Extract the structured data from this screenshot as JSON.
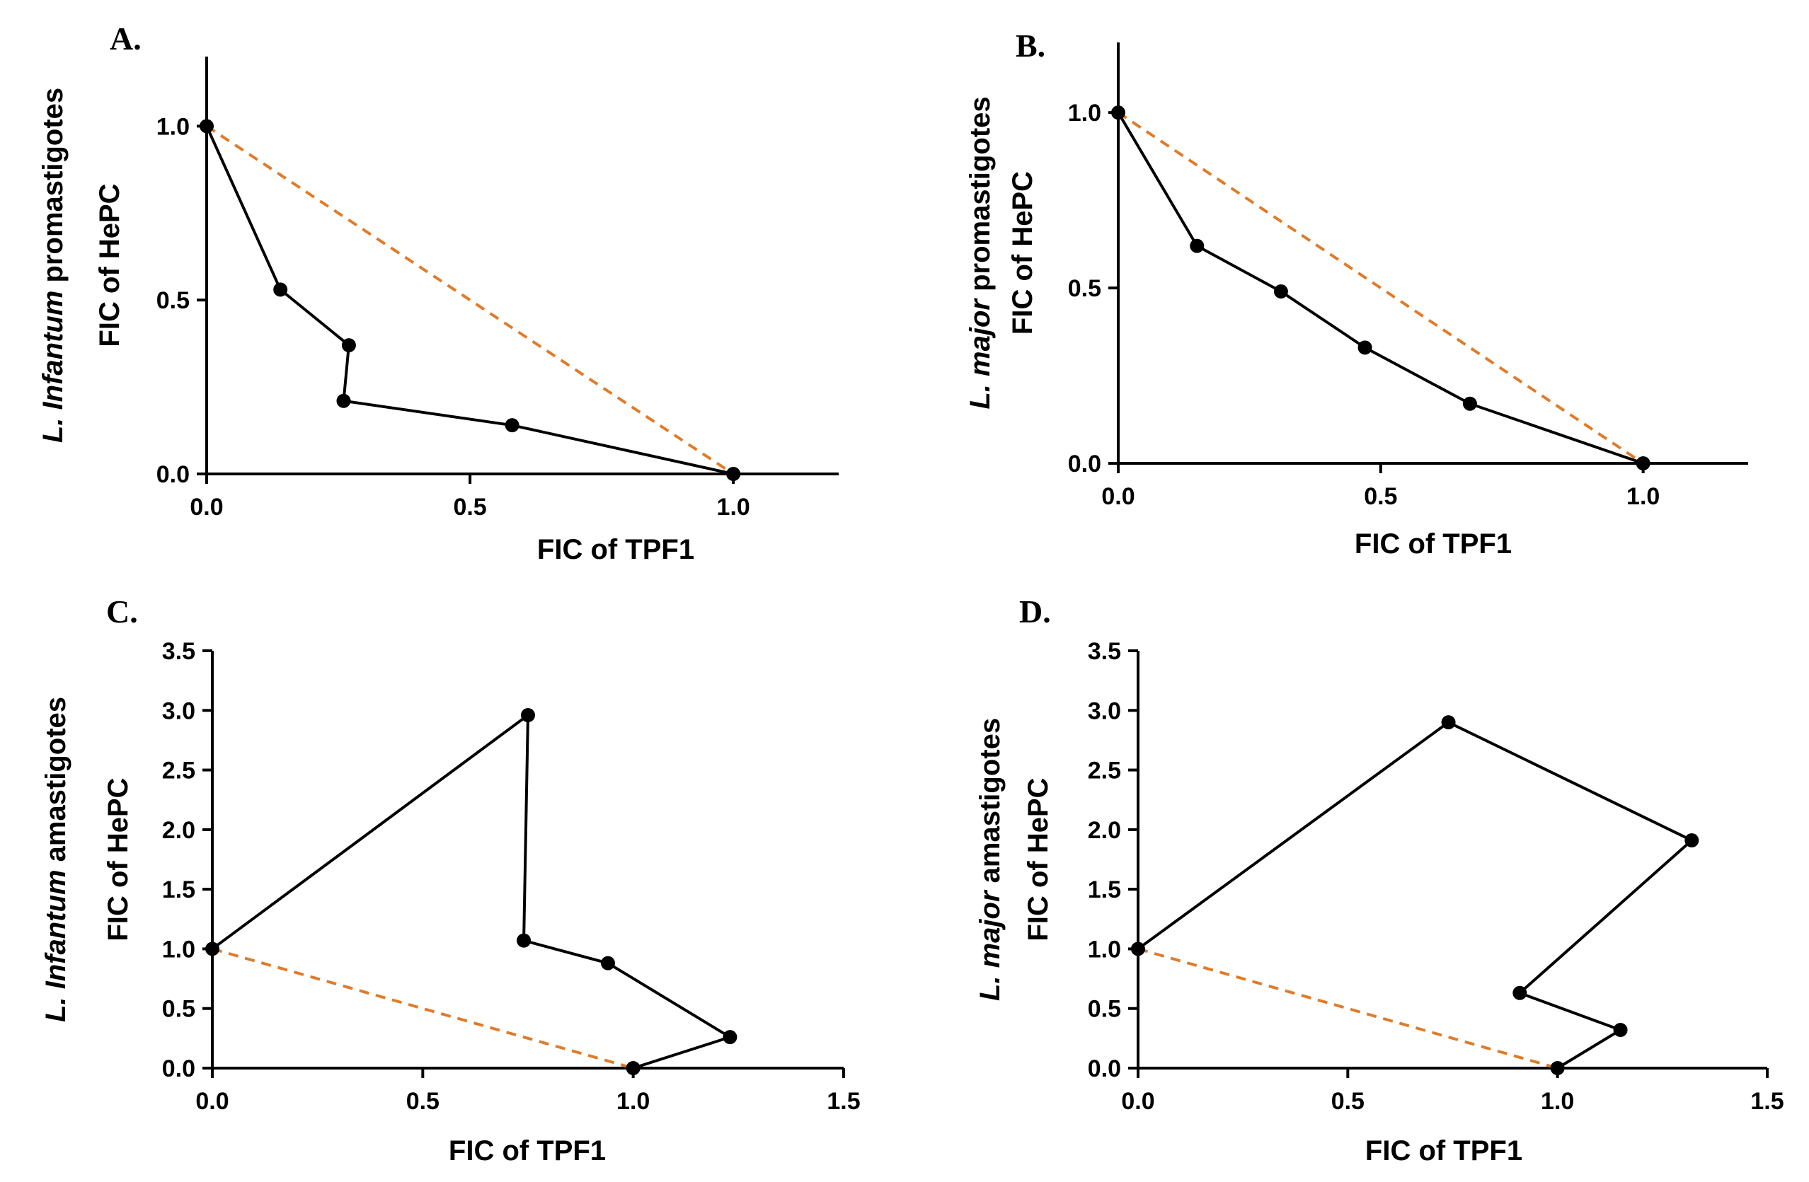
{
  "chart_data": [
    {
      "type": "line",
      "panel_label": "A.",
      "xlabel": "FIC of TPF1",
      "ylabel_parts": [
        {
          "text": "L. ",
          "italic": true
        },
        {
          "text": "Infantum",
          "italic": true
        },
        {
          "text": " promastigotes",
          "italic": false
        }
      ],
      "ylabel_line2": "FIC of HePC",
      "xlim": [
        0,
        1.2
      ],
      "ylim": [
        0,
        1.2
      ],
      "xticks": [
        "0.0",
        "0.5",
        "1.0"
      ],
      "xtick_values": [
        0,
        0.5,
        1.0
      ],
      "yticks": [
        "0.0",
        "0.5",
        "1.0"
      ],
      "ytick_values": [
        0,
        0.5,
        1.0
      ],
      "series": [
        {
          "x": [
            0.0,
            0.14,
            0.27,
            0.26,
            0.58,
            1.0
          ],
          "y": [
            1.0,
            0.53,
            0.37,
            0.21,
            0.14,
            0.0
          ]
        }
      ],
      "additivity": {
        "x": [
          0,
          1
        ],
        "y": [
          1,
          0
        ],
        "color": "#e07b2a"
      }
    },
    {
      "type": "line",
      "panel_label": "B.",
      "xlabel": "FIC of TPF1",
      "ylabel_parts": [
        {
          "text": "L. ",
          "italic": true
        },
        {
          "text": "major",
          "italic": true
        },
        {
          "text": " promastigotes",
          "italic": false
        }
      ],
      "ylabel_line2": "FIC of HePC",
      "xlim": [
        0,
        1.2
      ],
      "ylim": [
        0,
        1.2
      ],
      "xticks": [
        "0.0",
        "0.5",
        "1.0"
      ],
      "xtick_values": [
        0,
        0.5,
        1.0
      ],
      "yticks": [
        "0.0",
        "0.5",
        "1.0"
      ],
      "ytick_values": [
        0,
        0.5,
        1.0
      ],
      "series": [
        {
          "x": [
            0.0,
            0.15,
            0.31,
            0.47,
            0.67,
            1.0
          ],
          "y": [
            1.0,
            0.62,
            0.49,
            0.33,
            0.17,
            0.0
          ]
        }
      ],
      "additivity": {
        "x": [
          0,
          1
        ],
        "y": [
          1,
          0
        ],
        "color": "#e07b2a"
      }
    },
    {
      "type": "line",
      "panel_label": "C.",
      "xlabel": "FIC of TPF1",
      "ylabel_parts": [
        {
          "text": "L. ",
          "italic": true
        },
        {
          "text": "Infantum",
          "italic": true
        },
        {
          "text": " amastigotes",
          "italic": false
        }
      ],
      "ylabel_line2": "FIC of HePC",
      "xlim": [
        0,
        1.5
      ],
      "ylim": [
        0,
        3.5
      ],
      "xticks": [
        "0.0",
        "0.5",
        "1.0",
        "1.5"
      ],
      "xtick_values": [
        0,
        0.5,
        1.0,
        1.5
      ],
      "yticks": [
        "0.0",
        "0.5",
        "1.0",
        "1.5",
        "2.0",
        "2.5",
        "3.0",
        "3.5"
      ],
      "ytick_values": [
        0,
        0.5,
        1.0,
        1.5,
        2.0,
        2.5,
        3.0,
        3.5
      ],
      "series": [
        {
          "x": [
            0.0,
            0.75,
            0.74,
            0.94,
            1.23,
            1.0
          ],
          "y": [
            1.0,
            2.96,
            1.07,
            0.88,
            0.26,
            0.0
          ]
        }
      ],
      "additivity": {
        "x": [
          0,
          1
        ],
        "y": [
          1,
          0
        ],
        "color": "#e07b2a"
      }
    },
    {
      "type": "line",
      "panel_label": "D.",
      "xlabel": "FIC of TPF1",
      "ylabel_parts": [
        {
          "text": "L. ",
          "italic": true
        },
        {
          "text": "major",
          "italic": true
        },
        {
          "text": " amastigotes",
          "italic": false
        }
      ],
      "ylabel_line2": "FIC of HePC",
      "xlim": [
        0,
        1.5
      ],
      "ylim": [
        0,
        3.5
      ],
      "xticks": [
        "0.0",
        "0.5",
        "1.0",
        "1.5"
      ],
      "xtick_values": [
        0,
        0.5,
        1.0,
        1.5
      ],
      "yticks": [
        "0.0",
        "0.5",
        "1.0",
        "1.5",
        "2.0",
        "2.5",
        "3.0",
        "3.5"
      ],
      "ytick_values": [
        0,
        0.5,
        1.0,
        1.5,
        2.0,
        2.5,
        3.0,
        3.5
      ],
      "series": [
        {
          "x": [
            0.0,
            0.74,
            1.32,
            0.91,
            1.15,
            1.0
          ],
          "y": [
            1.0,
            2.9,
            1.91,
            0.63,
            0.32,
            0.0
          ]
        }
      ],
      "additivity": {
        "x": [
          0,
          1
        ],
        "y": [
          1,
          0
        ],
        "color": "#e07b2a"
      }
    }
  ]
}
